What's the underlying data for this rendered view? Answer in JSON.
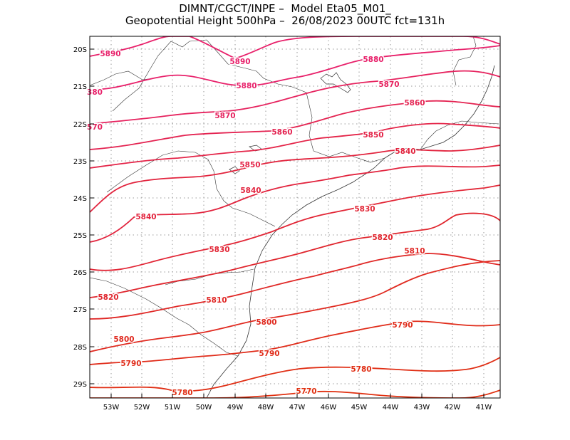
{
  "title": {
    "line1": "DIMNT/CGCT/INPE –  Model Eta05_M01_",
    "line2": "Geopotential Height 500hPa –  26/08/2023 00UTC fct=131h"
  },
  "axes": {
    "lon_ticks": [
      "53W",
      "52W",
      "51W",
      "50W",
      "49W",
      "48W",
      "47W",
      "46W",
      "45W",
      "44W",
      "43W",
      "42W",
      "41W"
    ],
    "lat_ticks": [
      "20S",
      "21S",
      "22S",
      "23S",
      "24S",
      "25S",
      "26S",
      "27S",
      "28S",
      "29S"
    ]
  },
  "colors": {
    "gpm_5890": "#e8206a",
    "gpm_5880": "#e8206a",
    "gpm_5870": "#e6225e",
    "gpm_5860": "#e42452",
    "gpm_5850": "#e42448",
    "gpm_5840": "#e2243e",
    "gpm_5830": "#e22636",
    "gpm_5820": "#e0262e",
    "gpm_5810": "#e02826",
    "gpm_5800": "#e02a20",
    "gpm_5790": "#e02c1a",
    "gpm_5780": "#e02e14",
    "gpm_5770": "#e03010",
    "coastline": "#333333",
    "grid": "#999999"
  },
  "contour_labels": [
    {
      "value": "5890",
      "key": "gpm_5890"
    },
    {
      "value": "5890",
      "key": "gpm_5890"
    },
    {
      "value": "5880",
      "key": "gpm_5880"
    },
    {
      "value": "5880",
      "key": "gpm_5880"
    },
    {
      "value": "380",
      "key": "gpm_5880"
    },
    {
      "value": "5870",
      "key": "gpm_5870"
    },
    {
      "value": "5870",
      "key": "gpm_5870"
    },
    {
      "value": "570",
      "key": "gpm_5870"
    },
    {
      "value": "5860",
      "key": "gpm_5860"
    },
    {
      "value": "5860",
      "key": "gpm_5860"
    },
    {
      "value": "5850",
      "key": "gpm_5850"
    },
    {
      "value": "5850",
      "key": "gpm_5850"
    },
    {
      "value": "5840",
      "key": "gpm_5840"
    },
    {
      "value": "5840",
      "key": "gpm_5840"
    },
    {
      "value": "5840",
      "key": "gpm_5840"
    },
    {
      "value": "5830",
      "key": "gpm_5830"
    },
    {
      "value": "5830",
      "key": "gpm_5830"
    },
    {
      "value": "5820",
      "key": "gpm_5820"
    },
    {
      "value": "5820",
      "key": "gpm_5820"
    },
    {
      "value": "5810",
      "key": "gpm_5810"
    },
    {
      "value": "5810",
      "key": "gpm_5810"
    },
    {
      "value": "5800",
      "key": "gpm_5800"
    },
    {
      "value": "5800",
      "key": "gpm_5800"
    },
    {
      "value": "5790",
      "key": "gpm_5790"
    },
    {
      "value": "5790",
      "key": "gpm_5790"
    },
    {
      "value": "5790",
      "key": "gpm_5790"
    },
    {
      "value": "5780",
      "key": "gpm_5780"
    },
    {
      "value": "5780",
      "key": "gpm_5780"
    },
    {
      "value": "5770",
      "key": "gpm_5770"
    }
  ]
}
